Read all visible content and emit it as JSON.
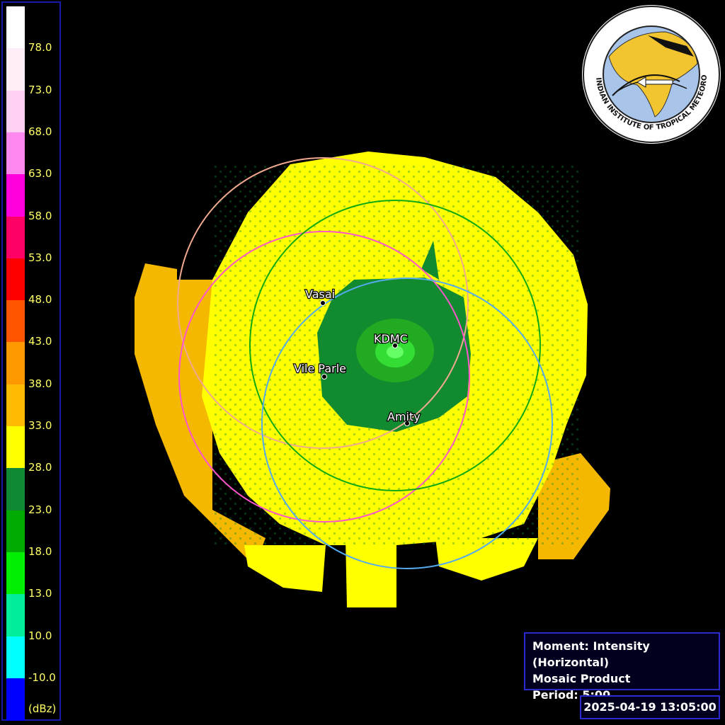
{
  "legend": {
    "unit": "(dBz)",
    "bands": [
      {
        "color": "#ffffff"
      },
      {
        "color": "#ffeef8"
      },
      {
        "color": "#ffd0f2"
      },
      {
        "color": "#ff88ee"
      },
      {
        "color": "#ff00dd"
      },
      {
        "color": "#ff0066"
      },
      {
        "color": "#ff0000"
      },
      {
        "color": "#ff5500"
      },
      {
        "color": "#ff9900"
      },
      {
        "color": "#ffbb00"
      },
      {
        "color": "#ffff00"
      },
      {
        "color": "#118833"
      },
      {
        "color": "#00aa00"
      },
      {
        "color": "#00ee00"
      },
      {
        "color": "#00ee99"
      },
      {
        "color": "#00ffff"
      },
      {
        "color": "#0000ff"
      }
    ],
    "ticks": [
      "78.0",
      "73.0",
      "68.0",
      "63.0",
      "58.0",
      "53.0",
      "48.0",
      "43.0",
      "38.0",
      "33.0",
      "28.0",
      "23.0",
      "18.0",
      "13.0",
      "10.0",
      "-10.0"
    ]
  },
  "sites": {
    "vasai": {
      "label": "Vasai"
    },
    "kdmc": {
      "label": "KDMC"
    },
    "vile_parle": {
      "label": "Vile Parle"
    },
    "amity": {
      "label": "Amity"
    }
  },
  "colors": {
    "echo_main": "#ffff00",
    "echo_outer": "#f5b800",
    "echo_core_dark": "#128a30",
    "echo_core_mid": "#22aa22",
    "echo_core_light": "#33dd33",
    "ring_peach": "#f0a890",
    "ring_pink": "#ff55cc",
    "ring_green": "#11aa11",
    "ring_blue": "#55aaee"
  },
  "info": {
    "moment": "Moment: Intensity (Horizontal)",
    "product": "Mosaic Product",
    "period": "Period: 5:00"
  },
  "timestamp": "2025-04-19 13:05:00",
  "logo": {
    "text": "INDIAN INSTITUTE OF TROPICAL METEOROLOGY PUNE"
  }
}
